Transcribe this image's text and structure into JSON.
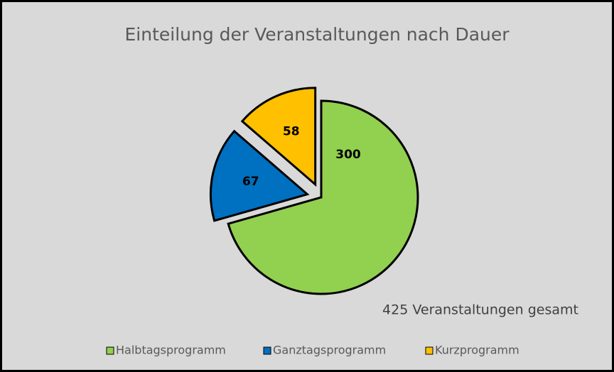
{
  "chart_data": {
    "type": "pie",
    "title": "Einteilung der Veranstaltungen nach Dauer",
    "categories": [
      "Halbtagsprogramm",
      "Ganztagsprogramm",
      "Kurzprogramm"
    ],
    "values": [
      300,
      67,
      58
    ],
    "colors": [
      "#92d050",
      "#0070c0",
      "#ffc000"
    ],
    "exploded": [
      false,
      true,
      true
    ],
    "annotation": "425 Veranstaltungen gesamt",
    "legend": "bottom"
  }
}
